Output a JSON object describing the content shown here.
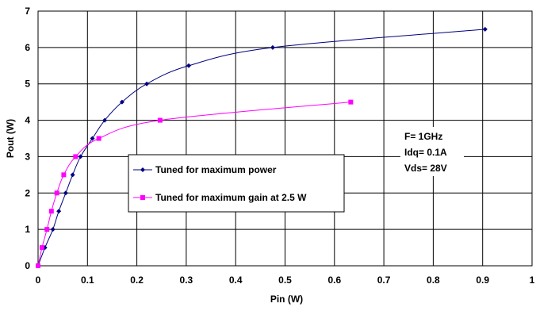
{
  "chart_data": {
    "type": "line",
    "xlabel": "Pin (W)",
    "ylabel": "Pout (W)",
    "xlim": [
      0,
      1
    ],
    "ylim": [
      0,
      7
    ],
    "xticks": [
      "0",
      "0.1",
      "0.2",
      "0.3",
      "0.4",
      "0.5",
      "0.6",
      "0.7",
      "0.8",
      "0.9",
      "1"
    ],
    "yticks": [
      "0",
      "1",
      "2",
      "3",
      "4",
      "5",
      "6",
      "7"
    ],
    "grid": true,
    "legend_position": "center",
    "series": [
      {
        "name": "Tuned for maximum power",
        "color": "#000080",
        "marker": "diamond",
        "x": [
          0,
          0.014,
          0.03,
          0.042,
          0.056,
          0.07,
          0.086,
          0.11,
          0.135,
          0.17,
          0.22,
          0.305,
          0.475,
          0.905
        ],
        "y": [
          0,
          0.5,
          1,
          1.5,
          2,
          2.5,
          3,
          3.5,
          4,
          4.5,
          5,
          5.5,
          6,
          6.5
        ]
      },
      {
        "name": "Tuned for maximum gain at 2.5 W",
        "color": "#ff00ff",
        "marker": "square",
        "x": [
          0,
          0.008,
          0.018,
          0.027,
          0.038,
          0.052,
          0.076,
          0.123,
          0.247,
          0.633
        ],
        "y": [
          0,
          0.5,
          1,
          1.5,
          2,
          2.5,
          3,
          3.5,
          4,
          4.5
        ]
      }
    ],
    "annotations": [
      "F= 1GHz",
      "Idq= 0.1A",
      "Vds= 28V"
    ]
  }
}
